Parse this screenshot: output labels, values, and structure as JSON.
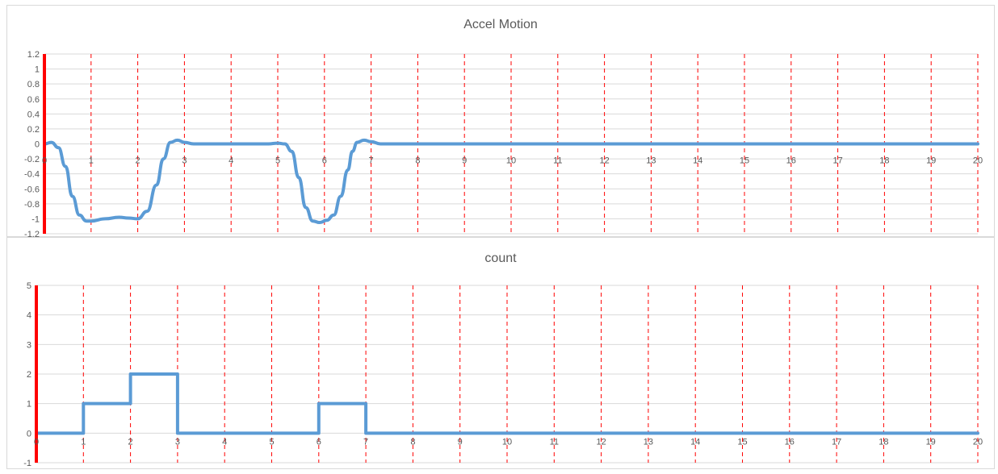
{
  "chart_data": [
    {
      "type": "line",
      "title": "Accel Motion",
      "xlabel": "",
      "ylabel": "",
      "xlim": [
        0,
        20
      ],
      "ylim": [
        -1.2,
        1.2
      ],
      "x_ticks": [
        "0",
        "1",
        "2",
        "3",
        "4",
        "5",
        "6",
        "7",
        "8",
        "9",
        "10",
        "11",
        "12",
        "13",
        "14",
        "15",
        "16",
        "17",
        "18",
        "19",
        "20"
      ],
      "y_ticks": [
        "1.2",
        "1",
        "0.8",
        "0.6",
        "0.4",
        "0.2",
        "0",
        "-0.2",
        "-0.4",
        "-0.6",
        "-0.8",
        "-1",
        "-1.2"
      ],
      "grid": "horizontal gridlines, dashed red vertical markers at each integer x",
      "legend": "none",
      "colors": {
        "series": "#5b9bd5",
        "marker": "#ff0000",
        "grid": "#d9d9d9"
      },
      "series": [
        {
          "x": [
            0,
            0.15,
            0.3,
            0.45,
            0.6,
            0.75,
            0.9,
            1.0,
            1.3,
            1.6,
            1.8,
            2.0,
            2.2,
            2.4,
            2.55,
            2.7,
            2.85,
            3.0,
            3.2,
            4.0,
            4.8,
            5.0,
            5.15,
            5.3,
            5.45,
            5.6,
            5.75,
            5.9,
            6.05,
            6.2,
            6.35,
            6.5,
            6.6,
            6.7,
            6.85,
            7.0,
            7.2,
            8,
            9,
            10,
            11,
            12,
            13,
            14,
            15,
            16,
            17,
            18,
            19,
            20
          ],
          "values": [
            0.0,
            0.02,
            -0.05,
            -0.3,
            -0.7,
            -0.95,
            -1.03,
            -1.03,
            -1.0,
            -0.98,
            -0.99,
            -1.0,
            -0.9,
            -0.55,
            -0.2,
            0.02,
            0.05,
            0.02,
            0.0,
            0.0,
            0.0,
            0.01,
            0.0,
            -0.1,
            -0.45,
            -0.85,
            -1.03,
            -1.05,
            -1.02,
            -0.95,
            -0.7,
            -0.35,
            -0.1,
            0.02,
            0.05,
            0.03,
            0.0,
            0.0,
            0.0,
            0.0,
            0.0,
            0.0,
            0.0,
            0.0,
            0.0,
            0.0,
            0.0,
            0.0,
            0.0,
            0.0
          ]
        }
      ]
    },
    {
      "type": "line",
      "title": "count",
      "xlabel": "",
      "ylabel": "",
      "xlim": [
        0,
        20
      ],
      "ylim": [
        -1,
        5
      ],
      "x_ticks": [
        "0",
        "1",
        "2",
        "3",
        "4",
        "5",
        "6",
        "7",
        "8",
        "9",
        "10",
        "11",
        "12",
        "13",
        "14",
        "15",
        "16",
        "17",
        "18",
        "19",
        "20"
      ],
      "y_ticks": [
        "5",
        "4",
        "3",
        "2",
        "1",
        "0",
        "-1"
      ],
      "grid": "horizontal gridlines, dashed red vertical markers at each integer x",
      "legend": "none",
      "colors": {
        "series": "#5b9bd5",
        "marker": "#ff0000",
        "grid": "#d9d9d9"
      },
      "series": [
        {
          "x": [
            0,
            1,
            1,
            2,
            2,
            3,
            3,
            6,
            6,
            7,
            7,
            20
          ],
          "values": [
            0,
            0,
            1,
            1,
            2,
            2,
            0,
            0,
            1,
            1,
            0,
            0
          ]
        }
      ]
    }
  ]
}
